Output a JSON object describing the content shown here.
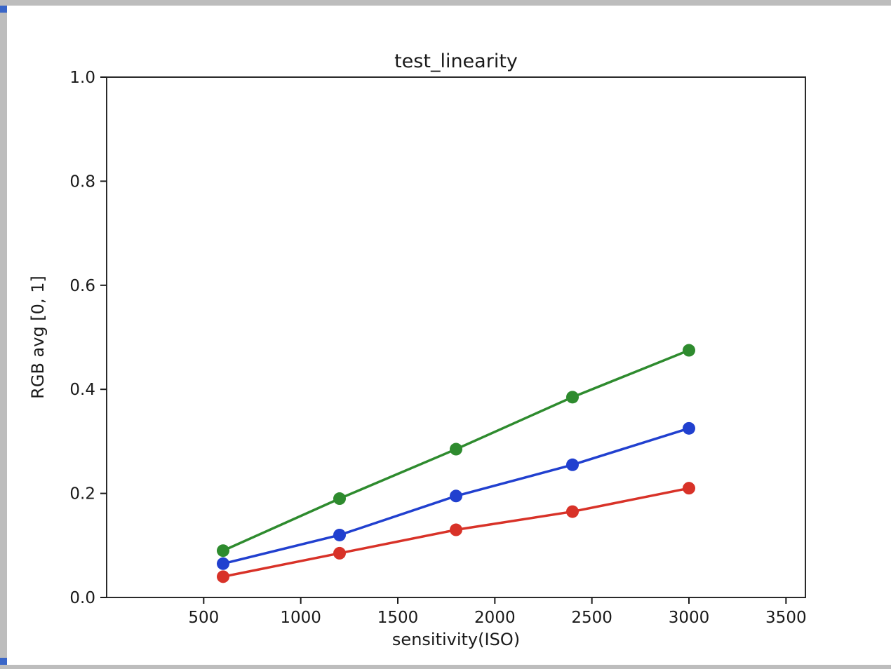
{
  "figure": {
    "title": "test_linearity",
    "xlabel": "sensitivity(ISO)",
    "ylabel": "RGB avg [0, 1]"
  },
  "chart_data": {
    "type": "line",
    "title": "test_linearity",
    "xlabel": "sensitivity(ISO)",
    "ylabel": "RGB avg [0, 1]",
    "x": [
      600,
      1200,
      1800,
      2400,
      3000
    ],
    "series": [
      {
        "name": "red",
        "color": "#d83228",
        "values": [
          0.04,
          0.085,
          0.13,
          0.165,
          0.21
        ]
      },
      {
        "name": "green",
        "color": "#2e8b2e",
        "values": [
          0.09,
          0.19,
          0.285,
          0.385,
          0.475
        ]
      },
      {
        "name": "blue",
        "color": "#2140cf",
        "values": [
          0.065,
          0.12,
          0.195,
          0.255,
          0.325
        ]
      }
    ],
    "xlim": [
      0,
      3600
    ],
    "ylim": [
      0,
      1
    ],
    "xticks": [
      {
        "v": 500,
        "label": "500"
      },
      {
        "v": 1000,
        "label": "1000"
      },
      {
        "v": 1500,
        "label": "1500"
      },
      {
        "v": 2000,
        "label": "2000"
      },
      {
        "v": 2500,
        "label": "2500"
      },
      {
        "v": 3000,
        "label": "3000"
      },
      {
        "v": 3500,
        "label": "3500"
      }
    ],
    "yticks": [
      {
        "v": 0.0,
        "label": "0.0"
      },
      {
        "v": 0.2,
        "label": "0.2"
      },
      {
        "v": 0.4,
        "label": "0.4"
      },
      {
        "v": 0.6,
        "label": "0.6"
      },
      {
        "v": 0.8,
        "label": "0.8"
      },
      {
        "v": 1.0,
        "label": "1.0"
      }
    ],
    "grid": false,
    "legend": null,
    "text_color": "#1a1a1a",
    "spine_color": "#2a2a2a"
  }
}
